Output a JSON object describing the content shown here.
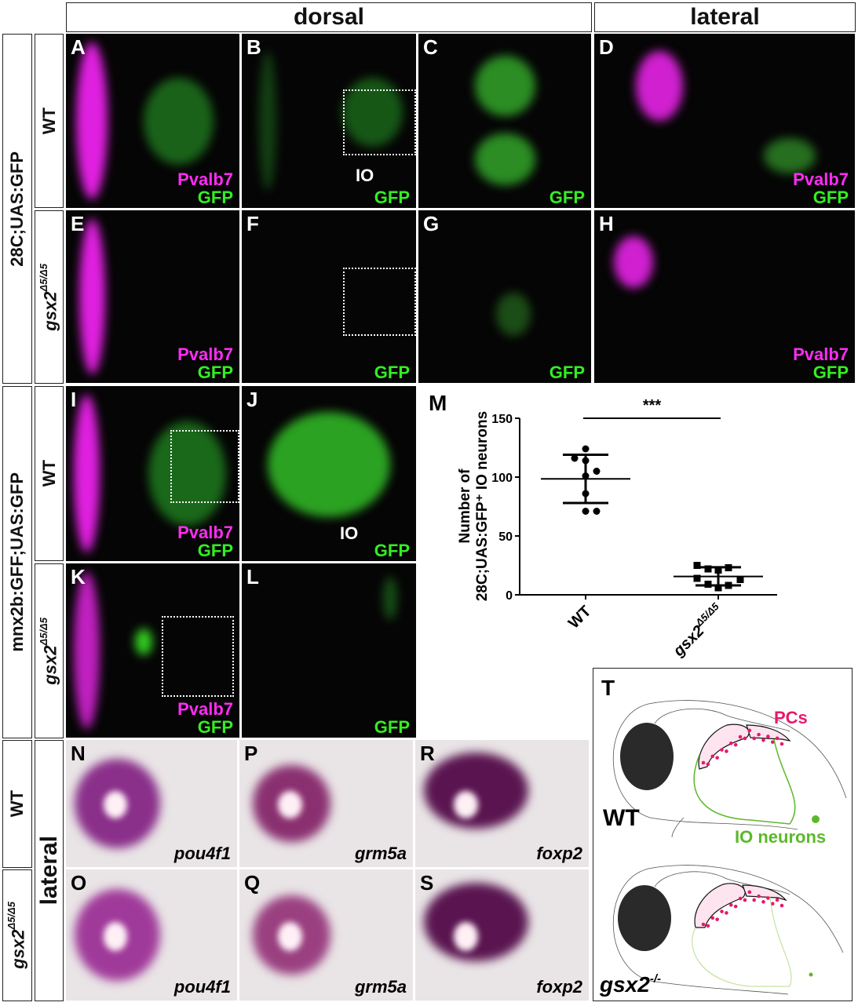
{
  "headers": {
    "dorsal": "dorsal",
    "lateral": "lateral"
  },
  "row_labels": {
    "line1": "28C;UAS:GFP",
    "line2": "mnx2b:GFF;UAS:GFP",
    "wt": "WT",
    "mutant": "gsx2",
    "mutant_sup": "Δ5/Δ5",
    "lateral": "lateral"
  },
  "panels": {
    "A": {
      "letter": "A",
      "magenta": "Pvalb7",
      "green": "GFP"
    },
    "B": {
      "letter": "B",
      "green": "GFP",
      "annotation": "IO"
    },
    "C": {
      "letter": "C",
      "green": "GFP"
    },
    "D": {
      "letter": "D",
      "magenta": "Pvalb7",
      "green": "GFP"
    },
    "E": {
      "letter": "E",
      "magenta": "Pvalb7",
      "green": "GFP"
    },
    "F": {
      "letter": "F",
      "green": "GFP"
    },
    "G": {
      "letter": "G",
      "green": "GFP"
    },
    "H": {
      "letter": "H",
      "magenta": "Pvalb7",
      "green": "GFP"
    },
    "I": {
      "letter": "I",
      "magenta": "Pvalb7",
      "green": "GFP"
    },
    "J": {
      "letter": "J",
      "green": "GFP",
      "annotation": "IO"
    },
    "K": {
      "letter": "K",
      "magenta": "Pvalb7",
      "green": "GFP"
    },
    "L": {
      "letter": "L",
      "green": "GFP"
    },
    "N": {
      "letter": "N",
      "gene": "pou4f1"
    },
    "O": {
      "letter": "O",
      "gene": "pou4f1"
    },
    "P": {
      "letter": "P",
      "gene": "grm5a"
    },
    "Q": {
      "letter": "Q",
      "gene": "grm5a"
    },
    "R": {
      "letter": "R",
      "gene": "foxp2"
    },
    "S": {
      "letter": "S",
      "gene": "foxp2"
    }
  },
  "schematic": {
    "letter": "T",
    "pcs": "PCs",
    "wt": "WT",
    "io": "IO neurons",
    "mutant": "gsx2",
    "mutant_sup": "-/-",
    "colors": {
      "pc": "#e8186c",
      "io": "#5cb82a"
    }
  },
  "chart_data": {
    "type": "scatter",
    "panel_letter": "M",
    "ylabel_line1": "Number of",
    "ylabel_line2": "28C;UAS:GFP⁺ IO neurons",
    "categories": [
      "WT",
      "gsx2Δ5/Δ5"
    ],
    "category_labels": {
      "wt": "WT",
      "mutant": "gsx2",
      "mutant_sup": "Δ5/Δ5"
    },
    "ylim": [
      0,
      150
    ],
    "yticks": [
      "0",
      "50",
      "100",
      "150"
    ],
    "significance": "***",
    "series": [
      {
        "category": "WT",
        "marker": "circle",
        "values": [
          124,
          116,
          114,
          105,
          101,
          86,
          71,
          71
        ],
        "mean": 98.5,
        "sd_upper": 119,
        "sd_lower": 78
      },
      {
        "category": "gsx2Δ5/Δ5",
        "marker": "square",
        "values": [
          25,
          22,
          21,
          23,
          14,
          13,
          9,
          6,
          8
        ],
        "mean": 15.6,
        "sd_upper": 23.4,
        "sd_lower": 8
      }
    ]
  }
}
